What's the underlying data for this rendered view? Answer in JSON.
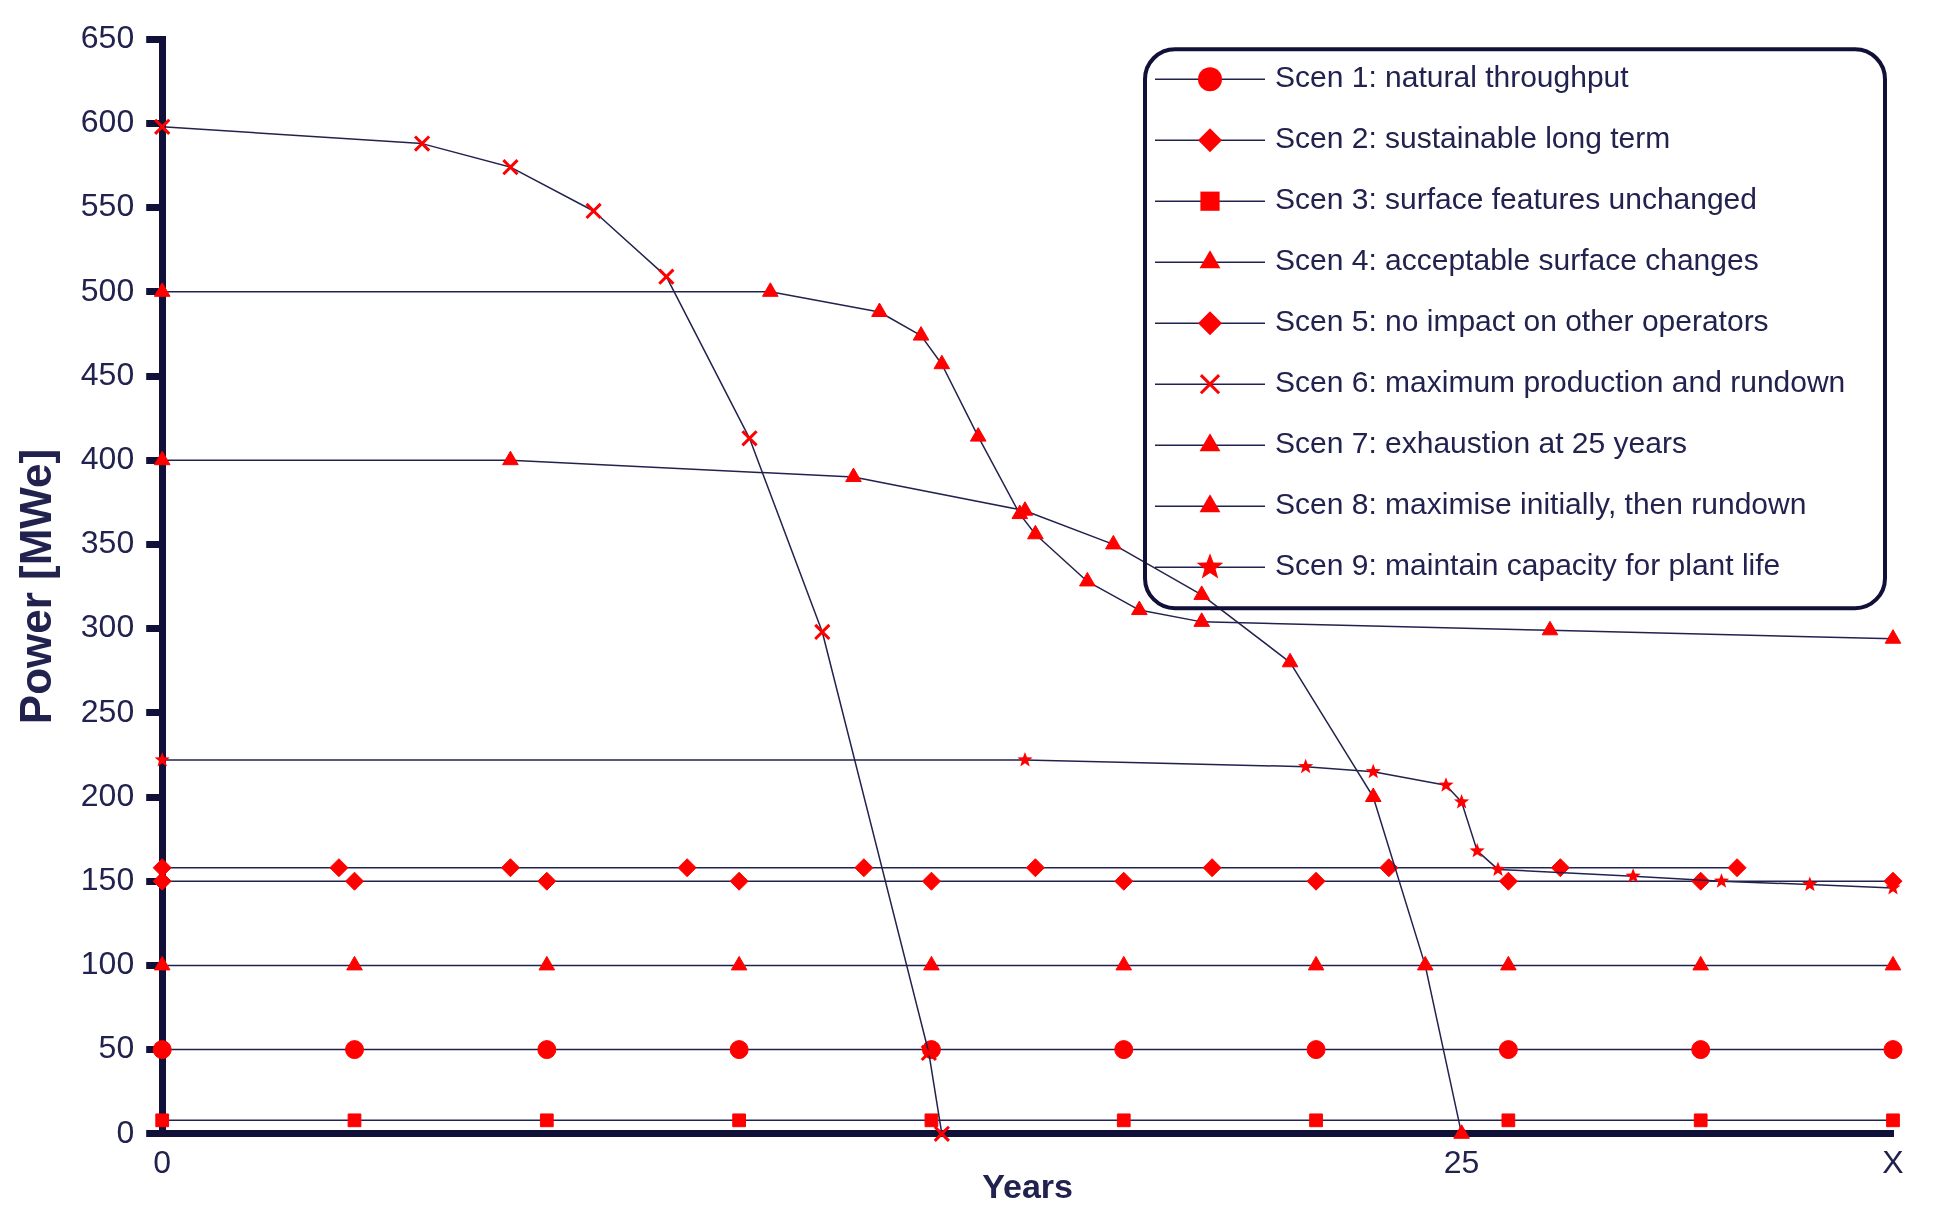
{
  "chart_data": {
    "type": "line",
    "xlabel": "Years",
    "ylabel": "Power [MWe]",
    "xlim": [
      0,
      33.3
    ],
    "xticks": [
      0,
      25,
      {
        "value": 33.3,
        "label": "X"
      }
    ],
    "ylim": [
      0,
      650
    ],
    "yticks": [
      0,
      50,
      100,
      150,
      200,
      250,
      300,
      350,
      400,
      450,
      500,
      550,
      600,
      650
    ],
    "grid": false,
    "legend": "top right",
    "line_style": "solid",
    "series": [
      {
        "name": "Scen 1: natural throughput",
        "color": "#ff0000",
        "marker": "circle",
        "x": [
          0,
          3.7,
          7.4,
          11.1,
          14.8,
          18.5,
          22.2,
          25.9,
          29.6,
          33.3
        ],
        "values": [
          50,
          50,
          50,
          50,
          50,
          50,
          50,
          50,
          50,
          50
        ]
      },
      {
        "name": "Scen 2: sustainable long term",
        "color": "#ff0000",
        "marker": "diamond",
        "x": [
          0,
          3.7,
          7.4,
          11.1,
          14.8,
          18.5,
          22.2,
          25.9,
          29.6,
          33.3
        ],
        "values": [
          150,
          150,
          150,
          150,
          150,
          150,
          150,
          150,
          150,
          150
        ]
      },
      {
        "name": "Scen 3: surface features unchanged",
        "color": "#ff0000",
        "marker": "square",
        "x": [
          0,
          3.7,
          7.4,
          11.1,
          14.8,
          18.5,
          22.2,
          25.9,
          29.6,
          33.3
        ],
        "values": [
          8,
          8,
          8,
          8,
          8,
          8,
          8,
          8,
          8,
          8
        ]
      },
      {
        "name": "Scen 4: acceptable surface changes",
        "color": "#ff0000",
        "marker": "triangle",
        "x": [
          0,
          3.7,
          7.4,
          11.1,
          14.8,
          18.5,
          22.2,
          25.9,
          29.6,
          33.3
        ],
        "values": [
          100,
          100,
          100,
          100,
          100,
          100,
          100,
          100,
          100,
          100
        ]
      },
      {
        "name": "Scen 5: no impact on other operators",
        "color": "#ff0000",
        "marker": "diamond",
        "x": [
          0,
          3.4,
          6.7,
          10.1,
          13.5,
          16.8,
          20.2,
          23.6,
          26.9,
          30.3
        ],
        "values": [
          158,
          158,
          158,
          158,
          158,
          158,
          158,
          158,
          158,
          158
        ]
      },
      {
        "name": "Scen 6: maximum production and rundown",
        "color": "#ff0000",
        "marker": "cross",
        "x": [
          0,
          5,
          6.7,
          8.3,
          9.7,
          11.3,
          12.7,
          14.75,
          15
        ],
        "values": [
          598,
          588,
          574,
          548,
          509,
          413,
          298,
          48,
          0
        ]
      },
      {
        "name": "Scen 7: exhaustion at 25 years",
        "color": "#ff0000",
        "marker": "triangle",
        "x": [
          0,
          6.7,
          13.3,
          16.6,
          18.3,
          20,
          21.7,
          23.3,
          24.3,
          25
        ],
        "values": [
          400,
          400,
          390,
          370,
          350,
          320,
          280,
          200,
          100,
          0
        ]
      },
      {
        "name": "Scen 8: maximise initially, then rundown",
        "color": "#ff0000",
        "marker": "triangle",
        "x": [
          0,
          11.7,
          13.8,
          14.6,
          15,
          15.7,
          16.5,
          16.8,
          17.8,
          18.8,
          20,
          26.7,
          33.3
        ],
        "values": [
          500,
          500,
          488,
          474,
          457,
          414,
          368,
          356,
          328,
          311,
          304,
          299,
          294
        ]
      },
      {
        "name": "Scen 9: maintain capacity for plant life",
        "color": "#ff0000",
        "marker": "star",
        "x": [
          0,
          16.6,
          22,
          23.3,
          24.7,
          25,
          25.3,
          25.7,
          28.3,
          30,
          31.7,
          33.3
        ],
        "values": [
          222,
          222,
          218,
          215,
          207,
          197,
          168,
          157,
          153,
          150,
          148,
          146
        ]
      }
    ]
  }
}
